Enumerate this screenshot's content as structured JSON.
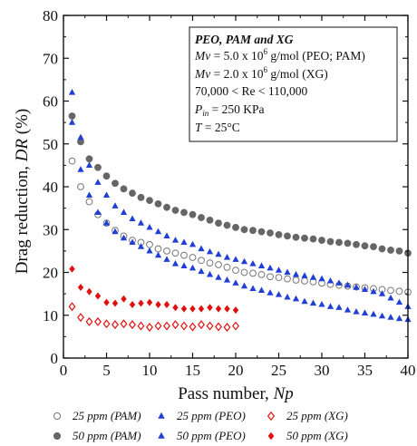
{
  "chart_data": {
    "type": "scatter",
    "xlabel": "Pass number, Np",
    "xlabel_plain": "Pass number, ",
    "xlabel_var": "Np",
    "ylabel": "Drag reduction, DR (%)",
    "ylabel_plain": "Drag reduction, ",
    "ylabel_var": "DR",
    "ylabel_unit": " (%)",
    "xlim": [
      0,
      40
    ],
    "ylim": [
      0,
      80
    ],
    "xticks": [
      0,
      5,
      10,
      15,
      20,
      25,
      30,
      35,
      40
    ],
    "yticks": [
      0,
      10,
      20,
      30,
      40,
      50,
      60,
      70,
      80
    ],
    "grid": false,
    "legend_position": "bottom",
    "annotation": {
      "title": "PEO, PAM and XG",
      "lines": [
        {
          "var": "Mv",
          "text": " = 5.0 x 10",
          "sup": "6",
          "tail": " g/mol (PEO; PAM)"
        },
        {
          "var": "Mv",
          "text": " = 2.0 x 10",
          "sup": "6",
          "tail": " g/mol (XG)"
        },
        {
          "var": "",
          "text": "70,000 < Re < 110,000",
          "sup": "",
          "tail": ""
        },
        {
          "var": "P",
          "sub": "in",
          "text": " = 250 KPa",
          "sup": "",
          "tail": ""
        },
        {
          "var": "T",
          "text": " = 25°C",
          "sup": "",
          "tail": ""
        }
      ]
    },
    "series": [
      {
        "name": "25 ppm (PAM)",
        "marker": "circle-open",
        "color": "#777777",
        "x": [
          1,
          2,
          3,
          4,
          5,
          6,
          7,
          8,
          9,
          10,
          11,
          12,
          13,
          14,
          15,
          16,
          17,
          18,
          19,
          20,
          21,
          22,
          23,
          24,
          25,
          26,
          27,
          28,
          29,
          30,
          31,
          32,
          33,
          34,
          35,
          36,
          37,
          38,
          39,
          40
        ],
        "y": [
          46,
          40,
          36.5,
          33.5,
          31.5,
          29.8,
          28.5,
          27.5,
          27,
          26.5,
          25.5,
          25,
          24.5,
          24,
          23.5,
          22.8,
          22.2,
          21.8,
          21.2,
          20.5,
          20,
          19.8,
          19.5,
          19,
          18.8,
          18.5,
          18.2,
          18,
          17.8,
          17.5,
          17.2,
          17,
          16.8,
          16.6,
          16.4,
          16.2,
          16,
          15.8,
          15.6,
          15.4
        ]
      },
      {
        "name": "50 ppm (PAM)",
        "marker": "circle-filled",
        "color": "#666666",
        "x": [
          1,
          2,
          3,
          4,
          5,
          6,
          7,
          8,
          9,
          10,
          11,
          12,
          13,
          14,
          15,
          16,
          17,
          18,
          19,
          20,
          21,
          22,
          23,
          24,
          25,
          26,
          27,
          28,
          29,
          30,
          31,
          32,
          33,
          34,
          35,
          36,
          37,
          38,
          39,
          40
        ],
        "y": [
          56.5,
          50.5,
          46.5,
          44.5,
          42.5,
          40.8,
          39.5,
          38.5,
          37.5,
          36.8,
          36,
          35.2,
          34.5,
          34,
          33.5,
          32.8,
          32.2,
          31.5,
          31,
          30.5,
          30,
          29.8,
          29.5,
          29.2,
          28.8,
          28.5,
          28.2,
          28,
          27.8,
          27.5,
          27.2,
          27,
          26.8,
          26.5,
          26.2,
          26,
          25.5,
          25.2,
          25,
          24.5
        ]
      },
      {
        "name": "25 ppm (PEO)",
        "marker": "triangle-up",
        "color": "#1f3fd6",
        "x": [
          1,
          2,
          3,
          4,
          5,
          6,
          7,
          8,
          9,
          10,
          11,
          12,
          13,
          14,
          15,
          16,
          17,
          18,
          19,
          20,
          21,
          22,
          23,
          24,
          25,
          26,
          27,
          28,
          29,
          30,
          31,
          32,
          33,
          34,
          35,
          36,
          37,
          38,
          39,
          40
        ],
        "y": [
          55,
          44,
          38,
          34,
          31.5,
          29.5,
          28,
          27,
          26,
          25,
          24,
          23,
          22,
          21.5,
          21,
          20.2,
          19.5,
          18.8,
          18.2,
          17.5,
          16.8,
          16.2,
          15.8,
          15.2,
          14.8,
          14.2,
          13.8,
          13.2,
          12.8,
          12.5,
          12,
          11.8,
          11.2,
          10.8,
          10.5,
          10.2,
          9.8,
          9.5,
          9.2,
          9
        ]
      },
      {
        "name": "50 ppm (PEO)",
        "marker": "triangle-up",
        "color": "#1f3fd6",
        "x": [
          1,
          2,
          3,
          4,
          5,
          6,
          7,
          8,
          9,
          10,
          11,
          12,
          13,
          14,
          15,
          16,
          17,
          18,
          19,
          20,
          21,
          22,
          23,
          24,
          25,
          26,
          27,
          28,
          29,
          30,
          31,
          32,
          33,
          34,
          35,
          36,
          37,
          38,
          39,
          40
        ],
        "y": [
          62,
          51.5,
          45,
          41,
          38,
          35.5,
          34,
          32.5,
          31.5,
          30.5,
          29.5,
          28.5,
          27.5,
          27,
          26.5,
          25.5,
          24.8,
          24.2,
          23.5,
          23,
          22.5,
          22,
          21.5,
          21,
          20.5,
          20,
          19.5,
          19.2,
          18.8,
          18.5,
          18,
          17.5,
          17,
          16.5,
          16,
          15.5,
          15,
          14,
          13,
          12
        ]
      },
      {
        "name": "25 ppm (XG)",
        "marker": "diamond-open",
        "color": "#e01010",
        "x": [
          1,
          2,
          3,
          4,
          5,
          6,
          7,
          8,
          9,
          10,
          11,
          12,
          13,
          14,
          15,
          16,
          17,
          18,
          19,
          20
        ],
        "y": [
          12,
          9.5,
          8.5,
          8.5,
          8,
          7.8,
          8,
          7.8,
          7.5,
          7.2,
          7.5,
          7.5,
          7.8,
          7.5,
          7.3,
          7.8,
          7.5,
          7.3,
          7.2,
          7.5
        ]
      },
      {
        "name": "50 ppm (XG)",
        "marker": "diamond-filled",
        "color": "#e01010",
        "x": [
          1,
          2,
          3,
          4,
          5,
          6,
          7,
          8,
          9,
          10,
          11,
          12,
          13,
          14,
          15,
          16,
          17,
          18,
          19,
          20
        ],
        "y": [
          20.8,
          16.5,
          15.5,
          14.5,
          13,
          12.8,
          13.8,
          12.5,
          12.8,
          13,
          12.5,
          12.5,
          11.8,
          11.5,
          11.5,
          11.5,
          11.8,
          11.5,
          11.5,
          11.2
        ]
      }
    ]
  }
}
